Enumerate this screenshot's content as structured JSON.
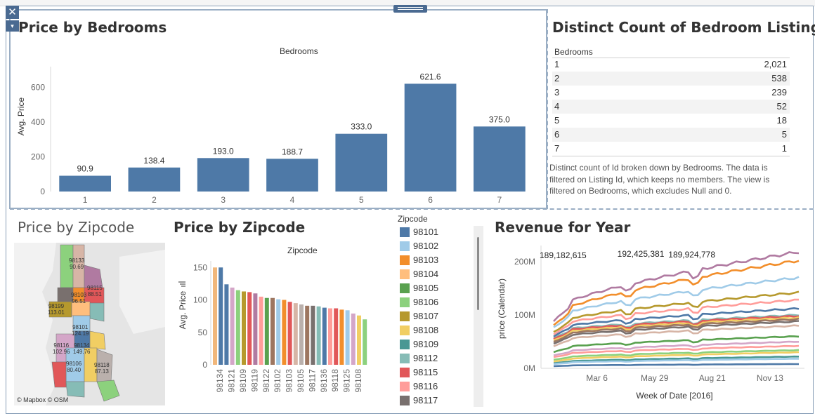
{
  "colors": {
    "bar": "#4e79a7",
    "frame": "#4a6a91"
  },
  "controls": {
    "close_glyph": "✕",
    "menu_glyph": "▾"
  },
  "bedrooms_chart": {
    "title": "Price by Bedrooms",
    "header": "Bedrooms",
    "ylabel": "Avg. Price",
    "chart_data": {
      "type": "bar",
      "categories": [
        "1",
        "2",
        "3",
        "4",
        "5",
        "6",
        "7"
      ],
      "values": [
        90.9,
        138.4,
        193.0,
        188.7,
        333.0,
        621.6,
        375.0
      ],
      "labels": [
        "90.9",
        "138.4",
        "193.0",
        "188.7",
        "333.0",
        "621.6",
        "375.0"
      ],
      "yticks": [
        "0",
        "200",
        "400",
        "600"
      ],
      "ylim": [
        0,
        700
      ]
    }
  },
  "count_table": {
    "title": "Distinct Count of Bedroom Listings",
    "header": "Bedrooms",
    "rows": [
      {
        "key": "1",
        "value": "2,021"
      },
      {
        "key": "2",
        "value": "538"
      },
      {
        "key": "3",
        "value": "239"
      },
      {
        "key": "4",
        "value": "52"
      },
      {
        "key": "5",
        "value": "18"
      },
      {
        "key": "6",
        "value": "5"
      },
      {
        "key": "7",
        "value": "1"
      }
    ],
    "note": "Distinct count of Id broken down by Bedrooms. The data is filtered on Listing Id, which keeps no members. The view is filtered on Bedrooms, which excludes Null and 0."
  },
  "map": {
    "title": "Price by Zipcode",
    "attribution": "© Mapbox © OSM",
    "labels": [
      {
        "zip": "98133",
        "price": "90.69"
      },
      {
        "zip": "98115",
        "price": "88.51"
      },
      {
        "zip": "98103",
        "price": "96.51"
      },
      {
        "zip": "98199",
        "price": "113.01"
      },
      {
        "zip": "98101",
        "price": "124.19"
      },
      {
        "zip": "98116",
        "price": "102.96"
      },
      {
        "zip": "98134",
        "price": "149.76"
      },
      {
        "zip": "98106",
        "price": "80.40"
      },
      {
        "zip": "98118",
        "price": "87.13"
      }
    ]
  },
  "zip_chart": {
    "title": "Price by Zipcode",
    "header": "Zipcode",
    "ylabel": "Avg. Price",
    "sort_icon": "sort-descending-icon",
    "chart_data": {
      "type": "bar",
      "values": [
        150,
        150,
        124,
        119,
        115,
        113,
        112,
        110,
        105,
        103,
        103,
        101,
        100,
        97,
        95,
        93,
        91,
        91,
        90,
        88,
        87,
        87,
        85,
        84,
        79,
        76,
        70
      ],
      "colors": [
        "#f1b77b",
        "#4e79a7",
        "#4e79a7",
        "#d4a6c8",
        "#8cd17d",
        "#b6992d",
        "#e15759",
        "#b07aa1",
        "#ff9d9a",
        "#59a14f",
        "#9d7660",
        "#a0cbe8",
        "#f28e2b",
        "#e15759",
        "#d7b5a6",
        "#bab0ac",
        "#9d7660",
        "#79706e",
        "#86bcb6",
        "#4e79a7",
        "#ff9d9a",
        "#e15759",
        "#f28e2b",
        "#a0cbe8",
        "#d4a6c8",
        "#f1ce63",
        "#8cd17d"
      ],
      "xlabels": [
        "98134",
        "98121",
        "98109",
        "98119",
        "98122",
        "98102",
        "98103",
        "98105",
        "98117",
        "98136",
        "98118",
        "98125",
        "98108"
      ],
      "yticks": [
        "0",
        "50",
        "100",
        "150"
      ],
      "ylim": [
        0,
        160
      ]
    }
  },
  "legend": {
    "title": "Zipcode",
    "items": [
      {
        "label": "98101",
        "color": "#4e79a7"
      },
      {
        "label": "98102",
        "color": "#a0cbe8"
      },
      {
        "label": "98103",
        "color": "#f28e2b"
      },
      {
        "label": "98104",
        "color": "#ffbe7d"
      },
      {
        "label": "98105",
        "color": "#59a14f"
      },
      {
        "label": "98106",
        "color": "#8cd17d"
      },
      {
        "label": "98107",
        "color": "#b6992d"
      },
      {
        "label": "98108",
        "color": "#f1ce63"
      },
      {
        "label": "98109",
        "color": "#499894"
      },
      {
        "label": "98112",
        "color": "#86bcb6"
      },
      {
        "label": "98115",
        "color": "#e15759"
      },
      {
        "label": "98116",
        "color": "#ff9d9a"
      },
      {
        "label": "98117",
        "color": "#79706e"
      }
    ]
  },
  "revenue_chart": {
    "title": "Revenue for Year",
    "ylabel": "price (Calendar)",
    "xlabel": "Week of Date [2016]",
    "yticks": [
      "0M",
      "100M",
      "200M"
    ],
    "xticks": [
      "Mar 6",
      "May 29",
      "Aug 21",
      "Nov 13"
    ],
    "annotations": [
      "189,182,615",
      "192,425,381",
      "189,924,778"
    ],
    "chart_data": {
      "type": "line",
      "ylim": [
        0,
        230
      ],
      "weeks": 52,
      "series": [
        {
          "color": "#b07aa1",
          "start": 110,
          "end": 218
        },
        {
          "color": "#f28e2b",
          "start": 100,
          "end": 202
        },
        {
          "color": "#a0cbe8",
          "start": 95,
          "end": 170
        },
        {
          "color": "#b6992d",
          "start": 85,
          "end": 142
        },
        {
          "color": "#ff9d9a",
          "start": 80,
          "end": 128
        },
        {
          "color": "#4e79a7",
          "start": 75,
          "end": 112
        },
        {
          "color": "#86bcb6",
          "start": 70,
          "end": 100
        },
        {
          "color": "#e15759",
          "start": 68,
          "end": 98
        },
        {
          "color": "#f1ce63",
          "start": 65,
          "end": 95
        },
        {
          "color": "#9d7660",
          "start": 62,
          "end": 92
        },
        {
          "color": "#79706e",
          "start": 58,
          "end": 88
        },
        {
          "color": "#d7b5a6",
          "start": 52,
          "end": 80
        },
        {
          "color": "#59a14f",
          "start": 38,
          "end": 60
        },
        {
          "color": "#d4a6c8",
          "start": 30,
          "end": 50
        },
        {
          "color": "#ff9d9a",
          "start": 26,
          "end": 42
        },
        {
          "color": "#8cd17d",
          "start": 20,
          "end": 34
        },
        {
          "color": "#f1ce63",
          "start": 16,
          "end": 30
        },
        {
          "color": "#499894",
          "start": 12,
          "end": 22
        },
        {
          "color": "#a0cbe8",
          "start": 10,
          "end": 18
        },
        {
          "color": "#4e79a7",
          "start": 5,
          "end": 8
        }
      ]
    }
  }
}
